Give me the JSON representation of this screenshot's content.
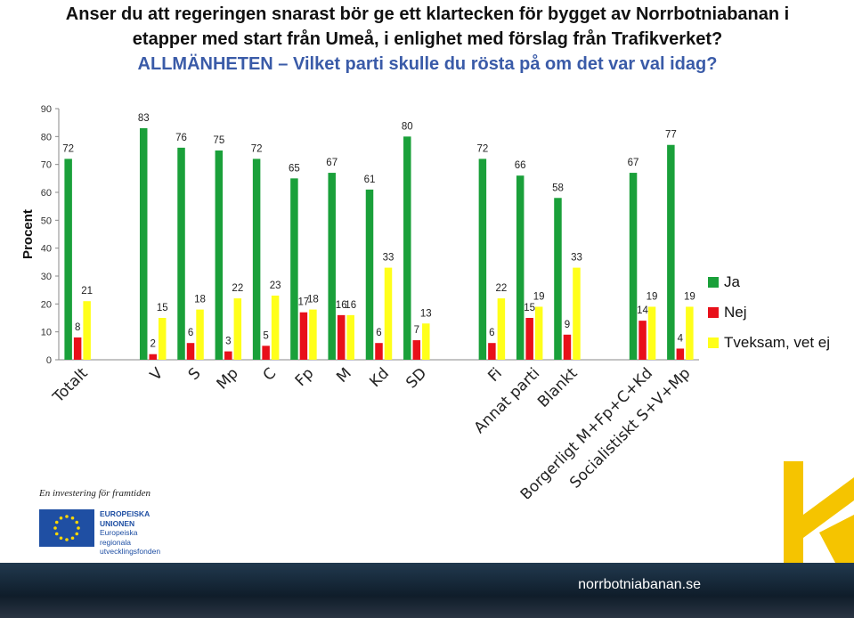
{
  "title_lines": [
    "Anser du att regeringen snarast bör ge ett klartecken för bygget av Norrbotniabanan i",
    "etapper med start från Umeå, i enlighet med förslag från Trafikverket?",
    "ALLMÄNHETEN – Vilket parti skulle du rösta på om det var val idag?"
  ],
  "chart_data": {
    "type": "bar",
    "ylabel": "Procent",
    "ylim": [
      0,
      90
    ],
    "yticks": [
      0,
      10,
      20,
      30,
      40,
      50,
      60,
      70,
      80,
      90
    ],
    "grid": false,
    "legend_position": "right",
    "categories": [
      "Totalt",
      "",
      "V",
      "S",
      "Mp",
      "C",
      "Fp",
      "M",
      "Kd",
      "SD",
      "",
      "Fi",
      "Annat parti",
      "Blankt",
      "",
      "Borgerligt M+Fp+C+Kd",
      "Socialistiskt S+V+Mp"
    ],
    "series": [
      {
        "name": "Ja",
        "color": "#1aa03a",
        "values": [
          72,
          null,
          83,
          76,
          75,
          72,
          65,
          67,
          61,
          80,
          null,
          72,
          66,
          58,
          null,
          67,
          77
        ]
      },
      {
        "name": "Nej",
        "color": "#e8101a",
        "values": [
          8,
          null,
          2,
          6,
          3,
          5,
          17,
          16,
          6,
          7,
          null,
          6,
          15,
          9,
          null,
          14,
          4
        ]
      },
      {
        "name": "Tveksam, vet ej",
        "color": "#ffff1a",
        "values": [
          21,
          null,
          15,
          18,
          22,
          23,
          18,
          16,
          33,
          13,
          null,
          22,
          19,
          33,
          null,
          19,
          19
        ]
      }
    ]
  },
  "footer": {
    "tagline": "En investering för framtiden",
    "eu_lines": [
      "EUROPEISKA",
      "UNIONEN",
      "Europeiska",
      "regionala",
      "utvecklingsfonden"
    ],
    "website": "norrbotniabanan.se"
  },
  "colors": {
    "logo_yellow": "#f5c400",
    "eu_blue": "#1f4fa3",
    "eu_star": "#ffd800"
  }
}
